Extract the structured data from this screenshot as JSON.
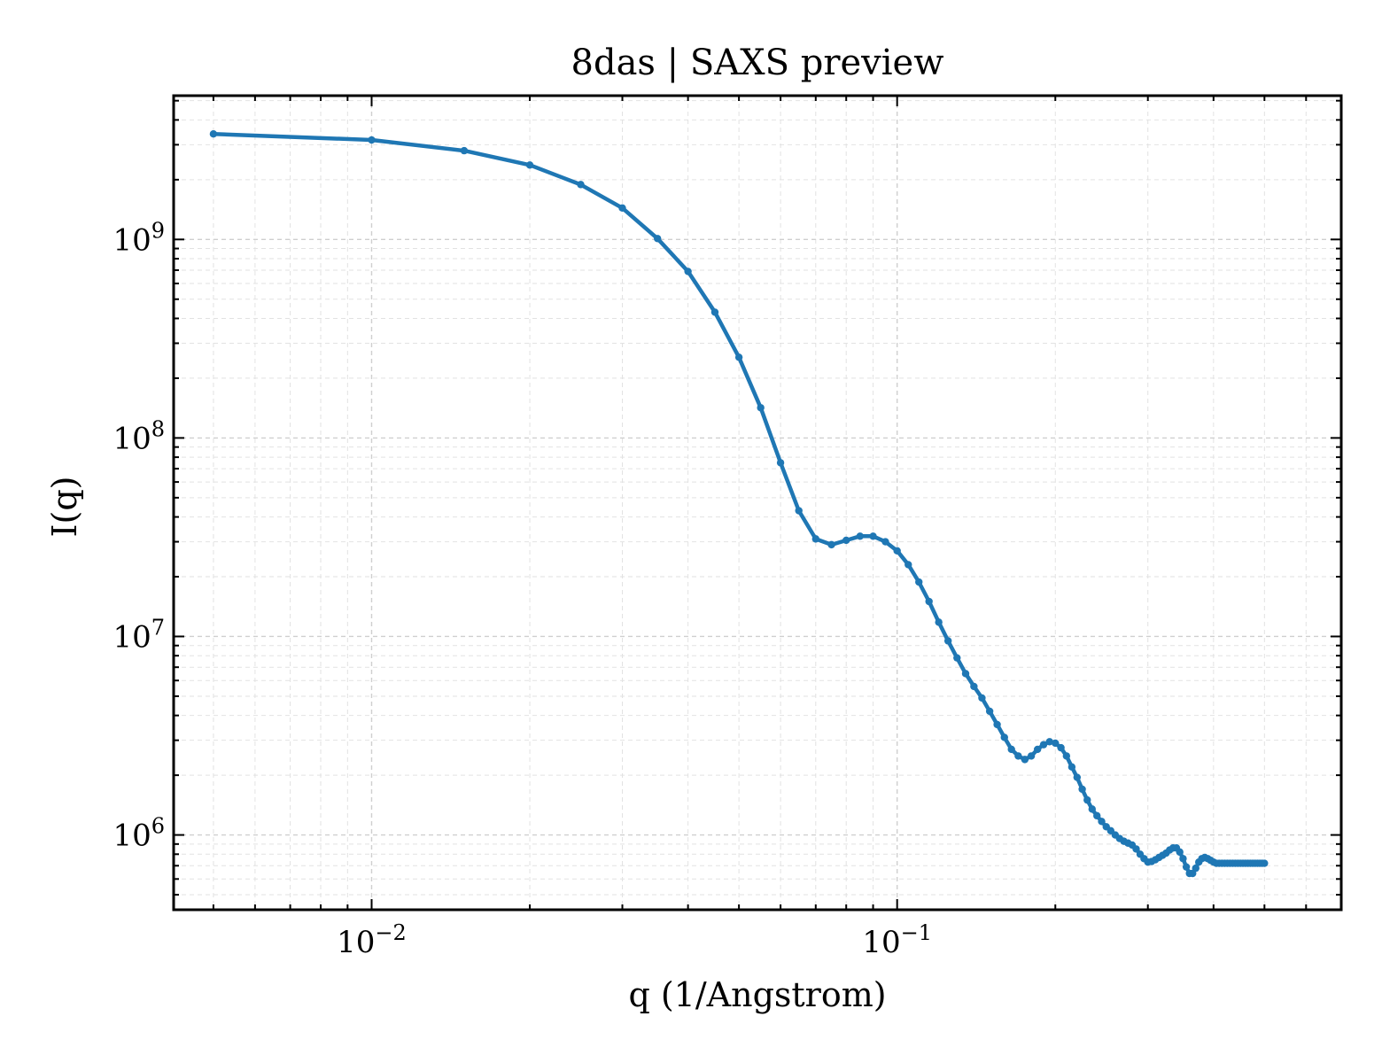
{
  "chart_data": {
    "type": "line",
    "title": "8das | SAXS preview",
    "xlabel": "q (1/Angstrom)",
    "ylabel": "I(q)",
    "xscale": "log",
    "yscale": "log",
    "xlim": [
      0.0042,
      0.7
    ],
    "ylim": [
      420000,
      5300000000
    ],
    "grid": true,
    "line_color": "#1f77b4",
    "x_ticks": [
      {
        "value": 0.01,
        "mantissa": "10",
        "exponent": "−2"
      },
      {
        "value": 0.1,
        "mantissa": "10",
        "exponent": "−1"
      }
    ],
    "y_ticks": [
      {
        "value": 1000000,
        "mantissa": "10",
        "exponent": "6"
      },
      {
        "value": 10000000,
        "mantissa": "10",
        "exponent": "7"
      },
      {
        "value": 100000000,
        "mantissa": "10",
        "exponent": "8"
      },
      {
        "value": 1000000000,
        "mantissa": "10",
        "exponent": "9"
      }
    ],
    "series": [
      {
        "x": [
          0.005,
          0.01,
          0.015,
          0.02,
          0.025,
          0.03,
          0.035,
          0.04,
          0.045,
          0.05,
          0.055,
          0.06,
          0.065,
          0.07,
          0.075,
          0.08,
          0.085,
          0.09,
          0.095,
          0.1,
          0.105,
          0.11,
          0.115,
          0.12,
          0.125,
          0.13,
          0.135,
          0.14,
          0.145,
          0.15,
          0.155,
          0.16,
          0.165,
          0.17,
          0.175,
          0.18,
          0.185,
          0.19,
          0.195,
          0.2,
          0.205,
          0.21,
          0.215,
          0.22,
          0.225,
          0.23,
          0.235,
          0.24,
          0.245,
          0.25,
          0.255,
          0.26,
          0.265,
          0.27,
          0.275,
          0.28,
          0.285,
          0.29,
          0.295,
          0.3,
          0.305,
          0.31,
          0.315,
          0.32,
          0.325,
          0.33,
          0.335,
          0.34,
          0.345,
          0.35,
          0.355,
          0.36,
          0.365,
          0.37,
          0.375,
          0.38,
          0.385,
          0.39,
          0.395,
          0.4,
          0.405,
          0.41,
          0.415,
          0.42,
          0.425,
          0.43,
          0.435,
          0.44,
          0.445,
          0.45,
          0.455,
          0.46,
          0.465,
          0.47,
          0.475,
          0.48,
          0.485,
          0.49,
          0.495,
          0.5
        ],
        "y": [
          3400000000,
          3170000000,
          2800000000,
          2370000000,
          1890000000,
          1440000000,
          1010000000,
          690000000,
          430000000,
          255000000,
          142000000,
          75000000,
          43000000,
          31000000,
          29000000,
          30500000,
          32000000,
          32000000,
          30000000,
          27000000,
          23000000,
          18800000,
          15000000,
          11800000,
          9500000,
          7800000,
          6500000,
          5600000,
          4900000,
          4200000,
          3600000,
          3100000,
          2700000,
          2500000,
          2400000,
          2500000,
          2700000,
          2850000,
          2950000,
          2900000,
          2750000,
          2500000,
          2200000,
          1950000,
          1700000,
          1500000,
          1350000,
          1250000,
          1170000,
          1100000,
          1050000,
          1000000,
          960000,
          930000,
          910000,
          890000,
          850000,
          800000,
          760000,
          730000,
          735000,
          750000,
          770000,
          790000,
          810000,
          840000,
          860000,
          860000,
          820000,
          760000,
          690000,
          640000,
          640000,
          680000,
          730000,
          760000,
          770000,
          760000,
          745000,
          730000,
          720000,
          720000,
          720000,
          720000,
          720000,
          720000,
          720000,
          720000,
          720000,
          720000,
          720000,
          720000,
          720000,
          720000,
          720000,
          720000,
          720000,
          720000,
          720000,
          720000
        ]
      }
    ]
  }
}
